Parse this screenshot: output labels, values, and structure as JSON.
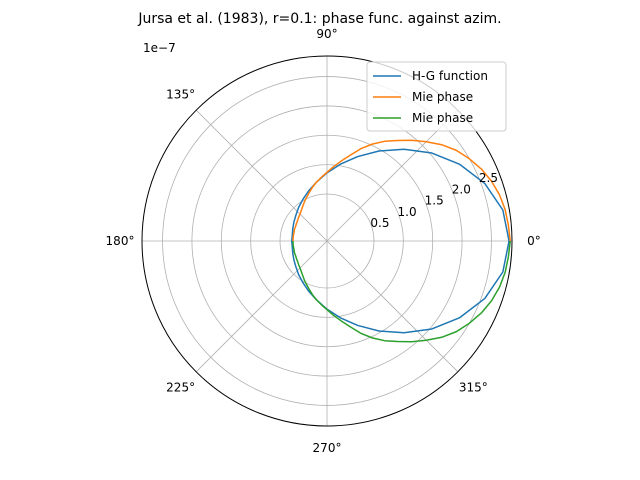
{
  "chart_data": {
    "type": "line",
    "projection": "polar",
    "title": "Jursa et al. (1983), r=0.1: phase func. against azim.",
    "offset_text": "1e−7",
    "angle_unit": "degrees",
    "theta_ticks": [
      {
        "deg": 0,
        "label": "0°"
      },
      {
        "deg": 45,
        "label": ""
      },
      {
        "deg": 90,
        "label": "90°"
      },
      {
        "deg": 135,
        "label": "135°"
      },
      {
        "deg": 180,
        "label": "180°"
      },
      {
        "deg": 225,
        "label": "225°"
      },
      {
        "deg": 270,
        "label": "270°"
      },
      {
        "deg": 315,
        "label": "315°"
      }
    ],
    "r_ticks": [
      {
        "value": 0.5,
        "label": "0.5"
      },
      {
        "value": 1.0,
        "label": "1.0"
      },
      {
        "value": 1.5,
        "label": "1.5"
      },
      {
        "value": 2.0,
        "label": "2.0"
      },
      {
        "value": 2.5,
        "label": "2.5"
      }
    ],
    "r_tick_label_angle_deg": 22.5,
    "r_min": -0.3,
    "r_max": 2.85,
    "grid": true,
    "legend_position": "top-right",
    "series": [
      {
        "name": "H-G function",
        "color": "#1f77b4",
        "theta_range": [
          0,
          360
        ],
        "theta": [
          0,
          10,
          20,
          30,
          40,
          50,
          60,
          70,
          80,
          90,
          100,
          110,
          120,
          130,
          140,
          150,
          160,
          170,
          180,
          190,
          200,
          210,
          220,
          230,
          240,
          250,
          260,
          270,
          280,
          290,
          300,
          310,
          320,
          330,
          340,
          350,
          360
        ],
        "r": [
          2.8,
          2.74,
          2.56,
          2.31,
          2.03,
          1.74,
          1.47,
          1.23,
          1.03,
          0.86,
          0.72,
          0.61,
          0.52,
          0.45,
          0.39,
          0.35,
          0.32,
          0.3,
          0.3,
          0.3,
          0.32,
          0.35,
          0.39,
          0.45,
          0.52,
          0.61,
          0.72,
          0.86,
          1.03,
          1.23,
          1.47,
          1.74,
          2.03,
          2.31,
          2.56,
          2.74,
          2.8
        ]
      },
      {
        "name": "Mie phase",
        "color": "#ff7f0e",
        "theta_range": [
          0,
          180
        ],
        "theta": [
          0,
          5,
          10,
          15,
          20,
          25,
          30,
          35,
          40,
          45,
          50,
          55,
          60,
          65,
          70,
          75,
          80,
          85,
          90,
          95,
          100,
          105,
          110,
          115,
          120,
          125,
          130,
          135,
          140,
          145,
          150,
          155,
          160,
          165,
          170,
          175,
          180
        ],
        "r": [
          2.82,
          2.8,
          2.78,
          2.74,
          2.68,
          2.6,
          2.5,
          2.39,
          2.25,
          2.09,
          1.94,
          1.79,
          1.66,
          1.52,
          1.37,
          1.21,
          1.08,
          0.97,
          0.87,
          0.79,
          0.72,
          0.65,
          0.58,
          0.52,
          0.47,
          0.42,
          0.38,
          0.35,
          0.33,
          0.31,
          0.3,
          0.29,
          0.29,
          0.28,
          0.28,
          0.28,
          0.28
        ]
      },
      {
        "name": "Mie phase",
        "color": "#2ca02c",
        "theta_range": [
          180,
          360
        ],
        "theta": [
          180,
          185,
          190,
          195,
          200,
          205,
          210,
          215,
          220,
          225,
          230,
          235,
          240,
          245,
          250,
          255,
          260,
          265,
          270,
          275,
          280,
          285,
          290,
          295,
          300,
          305,
          310,
          315,
          320,
          325,
          330,
          335,
          340,
          345,
          350,
          355,
          360
        ],
        "r": [
          0.28,
          0.28,
          0.28,
          0.28,
          0.29,
          0.29,
          0.3,
          0.31,
          0.33,
          0.35,
          0.38,
          0.42,
          0.47,
          0.52,
          0.58,
          0.65,
          0.72,
          0.79,
          0.87,
          0.97,
          1.08,
          1.21,
          1.37,
          1.52,
          1.66,
          1.79,
          1.94,
          2.09,
          2.25,
          2.39,
          2.5,
          2.6,
          2.68,
          2.74,
          2.78,
          2.8,
          2.82
        ]
      }
    ]
  }
}
